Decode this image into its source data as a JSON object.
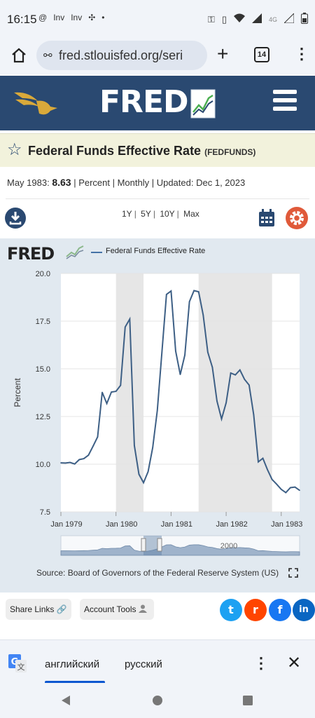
{
  "status": {
    "time": "16:15",
    "left_icons": [
      "@",
      "Inv",
      "Inv",
      "•"
    ],
    "signal_label": "4G"
  },
  "browser": {
    "url": "fred.stlouisfed.org/seri",
    "tab_count": "14"
  },
  "header": {
    "logo": "FRED"
  },
  "series": {
    "title": "Federal Funds Effective Rate",
    "id": "(FEDFUNDS)",
    "obs_date": "May 1983:",
    "obs_value": "8.63",
    "units": "| Percent | Monthly | Updated:",
    "updated": "Dec 1, 2023"
  },
  "range_links": [
    "1Y",
    "5Y",
    "10Y",
    "Max"
  ],
  "chart_logo": "FRED",
  "source": "Source: Board of Governors of the Federal Reserve System (US)",
  "share": {
    "share_links": "Share Links",
    "account_tools": "Account Tools"
  },
  "social": [
    {
      "name": "twitter",
      "color": "#1da1f2",
      "glyph": "t"
    },
    {
      "name": "reddit",
      "color": "#ff4500",
      "glyph": "r"
    },
    {
      "name": "facebook",
      "color": "#1877f2",
      "glyph": "f"
    },
    {
      "name": "linkedin",
      "color": "#0a66c2",
      "glyph": "in"
    }
  ],
  "translate": {
    "lang1": "английский",
    "lang2": "русский"
  },
  "chart_data": {
    "type": "line",
    "title": "",
    "series": [
      {
        "name": "Federal Funds Effective Rate",
        "color": "#3d5f85",
        "x": [
          "1979-01",
          "1979-02",
          "1979-03",
          "1979-04",
          "1979-05",
          "1979-06",
          "1979-07",
          "1979-08",
          "1979-09",
          "1979-10",
          "1979-11",
          "1979-12",
          "1980-01",
          "1980-02",
          "1980-03",
          "1980-04",
          "1980-05",
          "1980-06",
          "1980-07",
          "1980-08",
          "1980-09",
          "1980-10",
          "1980-11",
          "1980-12",
          "1981-01",
          "1981-02",
          "1981-03",
          "1981-04",
          "1981-05",
          "1981-06",
          "1981-07",
          "1981-08",
          "1981-09",
          "1981-10",
          "1981-11",
          "1981-12",
          "1982-01",
          "1982-02",
          "1982-03",
          "1982-04",
          "1982-05",
          "1982-06",
          "1982-07",
          "1982-08",
          "1982-09",
          "1982-10",
          "1982-11",
          "1982-12",
          "1983-01",
          "1983-02",
          "1983-03",
          "1983-04",
          "1983-05"
        ],
        "values": [
          10.07,
          10.06,
          10.09,
          10.01,
          10.24,
          10.29,
          10.47,
          10.94,
          11.43,
          13.77,
          13.18,
          13.78,
          13.82,
          14.13,
          17.19,
          17.61,
          10.98,
          9.47,
          9.03,
          9.61,
          10.87,
          12.81,
          15.85,
          18.9,
          19.08,
          15.93,
          14.7,
          15.72,
          18.52,
          19.1,
          19.04,
          17.82,
          15.87,
          15.08,
          13.31,
          12.37,
          13.22,
          14.78,
          14.68,
          14.94,
          14.45,
          14.15,
          12.59,
          10.12,
          10.31,
          9.71,
          9.2,
          8.95,
          8.68,
          8.51,
          8.77,
          8.8,
          8.63
        ]
      }
    ],
    "recessions": [
      [
        "1980-01",
        "1980-07"
      ],
      [
        "1981-07",
        "1982-11"
      ]
    ],
    "xlabel": "",
    "ylabel": "Percent",
    "ylim": [
      7.5,
      20.0
    ],
    "yticks": [
      "7.5",
      "10.0",
      "12.5",
      "15.0",
      "17.5",
      "20.0"
    ],
    "xticks": [
      {
        "label": "Jan 1979",
        "x": "1979-01"
      },
      {
        "label": "Jan 1980",
        "x": "1980-01"
      },
      {
        "label": "Jan 1981",
        "x": "1981-01"
      },
      {
        "label": "Jan 1982",
        "x": "1982-01"
      },
      {
        "label": "Jan 1983",
        "x": "1983-01"
      }
    ],
    "navigator_label": "2000",
    "grid": true
  }
}
